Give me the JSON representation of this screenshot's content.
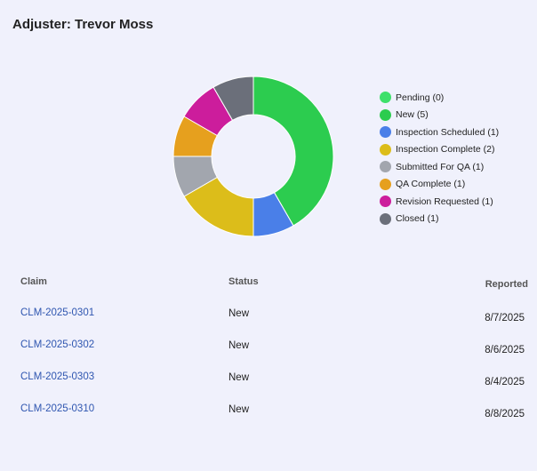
{
  "header": {
    "title": "Adjuster: Trevor Moss"
  },
  "chart_data": {
    "type": "pie",
    "variant": "donut",
    "categories": [
      "Pending",
      "New",
      "Inspection Scheduled",
      "Inspection Complete",
      "Submitted For QA",
      "QA Complete",
      "Revision Requested",
      "Closed"
    ],
    "values": [
      0,
      5,
      1,
      2,
      1,
      1,
      1,
      1
    ],
    "colors": [
      "#3ee06a",
      "#2ccc4f",
      "#4a7fe8",
      "#dcbd1a",
      "#a2a6ae",
      "#e6a01e",
      "#cc1d9c",
      "#6b6f7a"
    ],
    "legend_position": "right",
    "legend": [
      {
        "label": "Pending (0)",
        "color": "#3ee06a"
      },
      {
        "label": "New (5)",
        "color": "#2ccc4f"
      },
      {
        "label": "Inspection Scheduled (1)",
        "color": "#4a7fe8"
      },
      {
        "label": "Inspection Complete (2)",
        "color": "#dcbd1a"
      },
      {
        "label": "Submitted For QA (1)",
        "color": "#a2a6ae"
      },
      {
        "label": "QA Complete (1)",
        "color": "#e6a01e"
      },
      {
        "label": "Revision Requested (1)",
        "color": "#cc1d9c"
      },
      {
        "label": "Closed (1)",
        "color": "#6b6f7a"
      }
    ]
  },
  "table": {
    "headers": {
      "claim": "Claim",
      "status": "Status",
      "reported": "Reported"
    },
    "rows": [
      {
        "claim": "CLM-2025-0301",
        "status": "New",
        "reported": "8/7/2025"
      },
      {
        "claim": "CLM-2025-0302",
        "status": "New",
        "reported": "8/6/2025"
      },
      {
        "claim": "CLM-2025-0303",
        "status": "New",
        "reported": "8/4/2025"
      },
      {
        "claim": "CLM-2025-0310",
        "status": "New",
        "reported": "8/8/2025"
      }
    ]
  }
}
